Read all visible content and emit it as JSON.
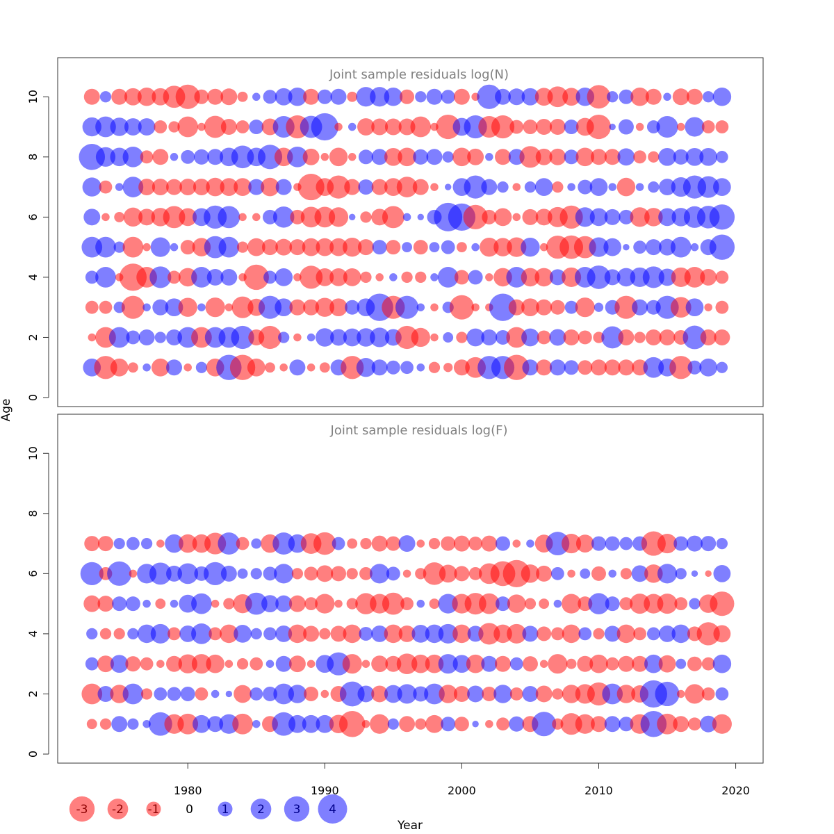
{
  "chart_data": {
    "type": "scatter",
    "subtype": "bubble",
    "xlabel": "Year",
    "ylabel": "Age",
    "x_ticks": [
      1980,
      1990,
      2000,
      2010,
      2020
    ],
    "y_ticks": [
      0,
      2,
      4,
      6,
      8,
      10
    ],
    "xlim": [
      1970.5,
      2022
    ],
    "ylim": [
      -0.3,
      11.3
    ],
    "colors": {
      "positive": "#0000FF",
      "negative": "#FF0000"
    },
    "legend": {
      "placement": "bottom-left",
      "values": [
        -3,
        -2,
        -1,
        0,
        1,
        2,
        3,
        4
      ],
      "labels": [
        "-3",
        "-2",
        "-1",
        "0",
        "1",
        "2",
        "3",
        "4"
      ]
    },
    "panels": [
      {
        "title": "Joint sample residuals log(N)",
        "years": [
          1973,
          1974,
          1975,
          1976,
          1977,
          1978,
          1979,
          1980,
          1981,
          1982,
          1983,
          1984,
          1985,
          1986,
          1987,
          1988,
          1989,
          1990,
          1991,
          1992,
          1993,
          1994,
          1995,
          1996,
          1997,
          1998,
          1999,
          2000,
          2001,
          2002,
          2003,
          2004,
          2005,
          2006,
          2007,
          2008,
          2009,
          2010,
          2011,
          2012,
          2013,
          2014,
          2015,
          2016,
          2017,
          2018,
          2019
        ],
        "ages": [
          1,
          2,
          3,
          4,
          5,
          6,
          7,
          8,
          9,
          10
        ],
        "residuals": [
          [
            1.5,
            -2.5,
            -1.5,
            -0.5,
            0.3,
            -1.5,
            1.2,
            -0.3,
            0.6,
            -1.5,
            3,
            -3,
            -1.5,
            -0.5,
            -0.3,
            1.2,
            -0.3,
            -0.5,
            1.2,
            -2.5,
            1.7,
            1.2,
            0.9,
            0.8,
            0.3,
            -0.6,
            -0.4,
            -1.2,
            -2,
            2.5,
            2.5,
            -3,
            1.2,
            -1.2,
            1.2,
            1,
            -1,
            -1.2,
            -1.2,
            -1.2,
            -1.2,
            2,
            1.5,
            -2.5,
            0.9,
            1.5,
            0.6
          ],
          [
            -0.3,
            -2,
            2,
            0.9,
            1.2,
            0.6,
            1.2,
            2,
            -2,
            2,
            2,
            2.5,
            -1.2,
            -2.5,
            0.6,
            -0.3,
            0.3,
            1.6,
            1.3,
            1.5,
            1.6,
            1.8,
            1.3,
            -2.5,
            -1.7,
            -0.3,
            0.5,
            -0.6,
            1.5,
            1.2,
            1,
            -2,
            1.5,
            -0.9,
            1.3,
            -1.2,
            -0.9,
            -0.6,
            2.3,
            -1.2,
            -0.6,
            -1.2,
            -1.2,
            -1,
            2.6,
            -1.2,
            -1.2
          ],
          [
            -0.8,
            -0.8,
            0.6,
            -2.5,
            0.3,
            1.2,
            1.5,
            -1.7,
            0.3,
            -1.8,
            -0.3,
            -2.2,
            -1.4,
            2.5,
            1.5,
            -1.2,
            -1.2,
            -1.7,
            -1.5,
            1,
            1.5,
            3.5,
            -2.5,
            2.5,
            0.3,
            -0.3,
            0.6,
            -2.8,
            -0.3,
            -0.3,
            3.5,
            -1.2,
            -1.5,
            -1.2,
            -1,
            0.8,
            -1.8,
            0.4,
            1,
            -2.5,
            1.2,
            1,
            2.5,
            -2,
            1.5,
            -0.3,
            -0.8
          ],
          [
            0.8,
            2,
            -0.3,
            -3.5,
            -2,
            2.2,
            -0.8,
            -1.6,
            2,
            1.3,
            1.3,
            -0.3,
            -3,
            0.8,
            1.5,
            -0.3,
            -2.5,
            -1.5,
            -1.5,
            -1.5,
            -0.6,
            -0.3,
            0.3,
            -0.6,
            -0.6,
            0.3,
            2,
            -1,
            1,
            -0.3,
            -1.6,
            2,
            -1.6,
            -1.6,
            1.2,
            -1.8,
            2,
            2.6,
            1.2,
            1.6,
            1.8,
            2.2,
            1.4,
            -1.8,
            -2,
            -1.3,
            -0.8
          ],
          [
            2,
            2,
            0.6,
            -2,
            -0.3,
            1.8,
            0.3,
            -1,
            -1.6,
            2.3,
            2,
            -0.6,
            -1.5,
            -1.2,
            -1.3,
            -1.2,
            -1.5,
            -1.5,
            -1.5,
            -1.7,
            -1.2,
            1,
            -1,
            0.5,
            -1,
            0.5,
            0.9,
            -0.5,
            0.3,
            -1.7,
            -1.6,
            -1.8,
            1.7,
            -0.3,
            -2.5,
            -2.6,
            -2.3,
            1.8,
            1.5,
            0.2,
            0.8,
            1.2,
            1.3,
            2,
            0.3,
            1.2,
            3
          ],
          [
            1.3,
            -0.3,
            -0.5,
            -1.7,
            -1.3,
            -1.6,
            -2.3,
            -1.5,
            1.5,
            2.5,
            2.3,
            -0.3,
            -0.3,
            1,
            2.1,
            -1,
            -2,
            -2,
            -1.8,
            0.2,
            -0.6,
            -1.3,
            -2.3,
            0.3,
            0.2,
            1,
            3.8,
            3.5,
            -2.8,
            -1,
            -1.5,
            -0.3,
            -1.2,
            -1.3,
            -1.9,
            -2.5,
            1.8,
            1.5,
            1.2,
            1,
            -1.8,
            -1.6,
            1.5,
            1.6,
            2.2,
            2.4,
            3
          ],
          [
            1.7,
            -0.8,
            0.3,
            2,
            -1.3,
            -1.3,
            -1.2,
            -1.3,
            -1.3,
            -1.6,
            -1.5,
            -1.5,
            1.2,
            -1.6,
            1.2,
            -0.3,
            -3.3,
            -1.5,
            -2.5,
            -1.2,
            1.1,
            -1.2,
            -1.5,
            -2,
            -1.2,
            -0.3,
            0.2,
            1.5,
            2.5,
            1.2,
            0.6,
            -0.3,
            0.6,
            1.5,
            -0.6,
            0.3,
            1,
            1.5,
            0.3,
            -1.6,
            0.3,
            0.6,
            1.3,
            1.8,
            2.5,
            2.2,
            1.5
          ],
          [
            3.2,
            1.8,
            1.6,
            2,
            -0.8,
            -1.2,
            0.3,
            0.9,
            1.1,
            1.2,
            1.6,
            2.4,
            1.6,
            2.8,
            -1.6,
            2,
            -1.3,
            -0.3,
            -1.6,
            -0.3,
            1,
            1.2,
            -1.5,
            -1.6,
            1.1,
            1.2,
            0.6,
            -1.6,
            -1.3,
            0.3,
            -1.2,
            1.2,
            -2.2,
            -1.3,
            -1.3,
            1,
            -1.6,
            -1.2,
            -1.2,
            1.4,
            -0.8,
            -0.6,
            1.5,
            1.1,
            1.5,
            1.5,
            0.7
          ],
          [
            1.7,
            2,
            1.6,
            1.4,
            1.4,
            -0.8,
            -0.6,
            -2,
            -0.3,
            -2.3,
            -1.2,
            -0.8,
            1,
            -1.3,
            2.2,
            -2.5,
            2.3,
            3.5,
            -0.3,
            0.3,
            -1.4,
            -1.3,
            -1.3,
            -1.3,
            -2,
            -0.3,
            -2.8,
            1.5,
            2.5,
            -2.2,
            -2.5,
            -0.9,
            -1,
            -1.2,
            -1.2,
            1,
            -1.5,
            -2.8,
            0.2,
            1.1,
            -0.3,
            0.8,
            2.2,
            -0.3,
            1.8,
            -0.8,
            -0.8
          ],
          [
            -1.2,
            0.6,
            -1.2,
            -1.4,
            -1.6,
            -1.4,
            -2.3,
            -2.8,
            -1,
            -1.2,
            -1.3,
            -0.5,
            0.3,
            0.9,
            1.4,
            1.6,
            -1.2,
            1,
            1.2,
            -0.5,
            1.8,
            1.8,
            1.6,
            -1,
            0.6,
            1.2,
            0.9,
            -1.2,
            -0.3,
            2.8,
            1.2,
            1.3,
            1.4,
            -1.5,
            -2,
            -1.5,
            1.6,
            -2.6,
            0.6,
            1,
            -1.6,
            -1.2,
            0.3,
            -1.3,
            -1.2,
            0.6,
            1.6
          ]
        ]
      },
      {
        "title": "Joint sample residuals log(F)",
        "years": [
          1973,
          1974,
          1975,
          1976,
          1977,
          1978,
          1979,
          1980,
          1981,
          1982,
          1983,
          1984,
          1985,
          1986,
          1987,
          1988,
          1989,
          1990,
          1991,
          1992,
          1993,
          1994,
          1995,
          1996,
          1997,
          1998,
          1999,
          2000,
          2001,
          2002,
          2003,
          2004,
          2005,
          2006,
          2007,
          2008,
          2009,
          2010,
          2011,
          2012,
          2013,
          2014,
          2015,
          2016,
          2017,
          2018,
          2019
        ],
        "ages": [
          1,
          2,
          3,
          4,
          5,
          6,
          7
        ],
        "residuals": [
          [
            -0.5,
            -0.6,
            1.2,
            0.6,
            0.3,
            2.6,
            -1.8,
            -2,
            1.5,
            1.2,
            1.8,
            -2,
            0.3,
            -1.2,
            2.6,
            1.5,
            1.5,
            1.5,
            -1.6,
            -3.2,
            -0.3,
            -1.8,
            0.6,
            -1.2,
            -0.6,
            -1.5,
            1,
            -1,
            0.2,
            -0.3,
            -0.8,
            1.1,
            -1.2,
            2.8,
            -0.6,
            -2.2,
            -1.8,
            -1.2,
            1.2,
            1,
            -1.8,
            3.2,
            -2,
            -1.2,
            -0.8,
            1.3,
            -1.8
          ],
          [
            -2,
            1.2,
            -1.6,
            2,
            -0.6,
            0.8,
            0.9,
            1,
            -0.8,
            0.3,
            0.2,
            -1.5,
            0.8,
            1,
            2,
            1.6,
            -1,
            -0.3,
            -1.2,
            2.9,
            1.3,
            -1.3,
            1.5,
            1.8,
            1.1,
            2,
            -1.6,
            -1.2,
            1.3,
            -1,
            1.6,
            -0.8,
            1.2,
            -1.3,
            -0.6,
            -1.6,
            -1.8,
            -2.5,
            2,
            -1.6,
            -1.4,
            3.5,
            2.8,
            -0.3,
            -1.8,
            -0.8,
            0.8
          ],
          [
            0.8,
            -1.3,
            1.5,
            -1.1,
            -0.8,
            -0.3,
            -1.2,
            -1.7,
            -1.8,
            -1.6,
            -0.3,
            -0.6,
            -0.8,
            0.3,
            1.2,
            -1.3,
            -0.3,
            1.5,
            2.5,
            -1.8,
            -0.3,
            -1.3,
            -1.2,
            -2,
            -1.6,
            -1.6,
            1.8,
            1.5,
            -1.6,
            1.2,
            -1.2,
            0.8,
            -1.1,
            -0.3,
            -1.8,
            -0.5,
            -1.2,
            -1.6,
            -0.8,
            -1.2,
            -1.2,
            1.6,
            -1.4,
            0.5,
            -1,
            -0.8,
            1.6
          ],
          [
            0.6,
            -0.6,
            -0.6,
            0.6,
            1.6,
            1.8,
            -0.8,
            1.3,
            2,
            -0.8,
            -1.6,
            1.5,
            0.6,
            0.8,
            1.3,
            -1.6,
            -1.2,
            -0.6,
            -1.2,
            -1.6,
            0.9,
            1.3,
            -1.6,
            -1.3,
            1.5,
            1.6,
            1.8,
            -1.6,
            1.2,
            -2.2,
            -1.6,
            -1.8,
            1.2,
            -1,
            -0.8,
            -1.6,
            0.8,
            -0.6,
            1.2,
            -1.6,
            -0.8,
            0.8,
            1.3,
            1.6,
            -1,
            -2.5,
            -1.4
          ],
          [
            -1.3,
            -1.2,
            1,
            1,
            0.3,
            -0.5,
            0.3,
            1.5,
            2,
            -0.3,
            -0.6,
            -1.7,
            2.3,
            1.4,
            1.3,
            -1.3,
            -0.8,
            -1.8,
            -0.3,
            -0.6,
            -2.1,
            -1.8,
            -2.3,
            -0.8,
            0.3,
            -0.5,
            1.8,
            -1.8,
            -2.2,
            -2,
            1,
            -1.6,
            -0.6,
            -0.5,
            0.3,
            -1.8,
            -1,
            2.1,
            1,
            -0.8,
            -1.9,
            -1.8,
            -1.9,
            -0.8,
            0.6,
            -1.6,
            -2.8
          ],
          [
            2.5,
            -0.8,
            2.8,
            -0.3,
            1.8,
            2.3,
            1.2,
            2,
            1,
            2.5,
            1.2,
            0.5,
            0.6,
            0.9,
            1.8,
            -0.6,
            -0.9,
            -1.3,
            -1.1,
            -0.6,
            -0.8,
            1.8,
            0.9,
            -0.3,
            -0.6,
            -2.4,
            -1.5,
            -1.1,
            -0.8,
            -2,
            -2.9,
            -3.5,
            -1.6,
            -1.2,
            0.8,
            -0.3,
            0.5,
            -1,
            0.3,
            -0.6,
            1.3,
            -1.6,
            1.8,
            0.6,
            0.2,
            -0.2,
            1.4
          ],
          [
            -1.1,
            -1.1,
            0.6,
            0.8,
            0.6,
            -0.3,
            1.6,
            -1.6,
            -1.6,
            -2.2,
            2.3,
            -0.8,
            0.5,
            -1.6,
            2.3,
            1.6,
            -2,
            -2.4,
            0.8,
            -0.5,
            -0.6,
            -1.2,
            -1,
            1.3,
            -0.3,
            -0.6,
            -1,
            -1.2,
            -0.9,
            -1.2,
            1,
            -0.3,
            0.3,
            -1.5,
            2.6,
            -1.8,
            -1.5,
            1,
            1,
            0.8,
            1,
            -2.8,
            -1.8,
            1,
            1.2,
            1.1,
            0.6
          ]
        ]
      }
    ]
  }
}
